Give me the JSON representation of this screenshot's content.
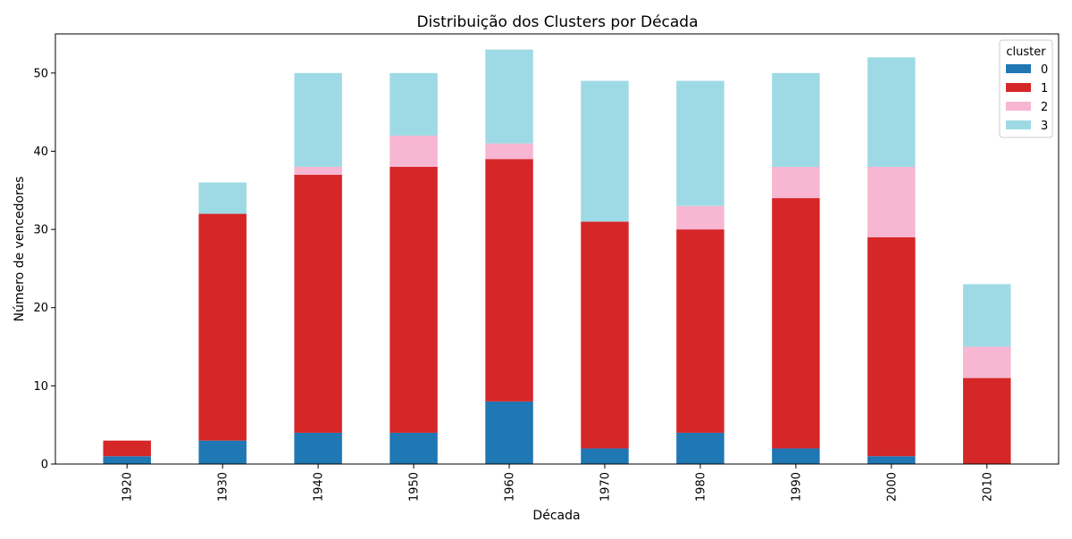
{
  "chart_data": {
    "type": "bar",
    "stacked": true,
    "title": "Distribuição dos Clusters por Década",
    "xlabel": "Década",
    "ylabel": "Número de vencedores",
    "categories": [
      "1920",
      "1930",
      "1940",
      "1950",
      "1960",
      "1970",
      "1980",
      "1990",
      "2000",
      "2010"
    ],
    "ylim": [
      0,
      55
    ],
    "yticks": [
      0,
      10,
      20,
      30,
      40,
      50
    ],
    "grid": false,
    "legend": {
      "title": "cluster",
      "placement": "top-right"
    },
    "series": [
      {
        "name": "0",
        "color": "#1f77b4",
        "values": [
          1,
          3,
          4,
          4,
          8,
          2,
          4,
          2,
          1,
          0
        ]
      },
      {
        "name": "1",
        "color": "#d62728",
        "values": [
          2,
          29,
          33,
          34,
          31,
          29,
          26,
          32,
          28,
          11
        ]
      },
      {
        "name": "2",
        "color": "#f7b6d2",
        "values": [
          0,
          0,
          1,
          4,
          2,
          0,
          3,
          4,
          9,
          4
        ]
      },
      {
        "name": "3",
        "color": "#9edae5",
        "values": [
          0,
          4,
          12,
          8,
          12,
          18,
          16,
          12,
          14,
          8
        ]
      }
    ]
  }
}
